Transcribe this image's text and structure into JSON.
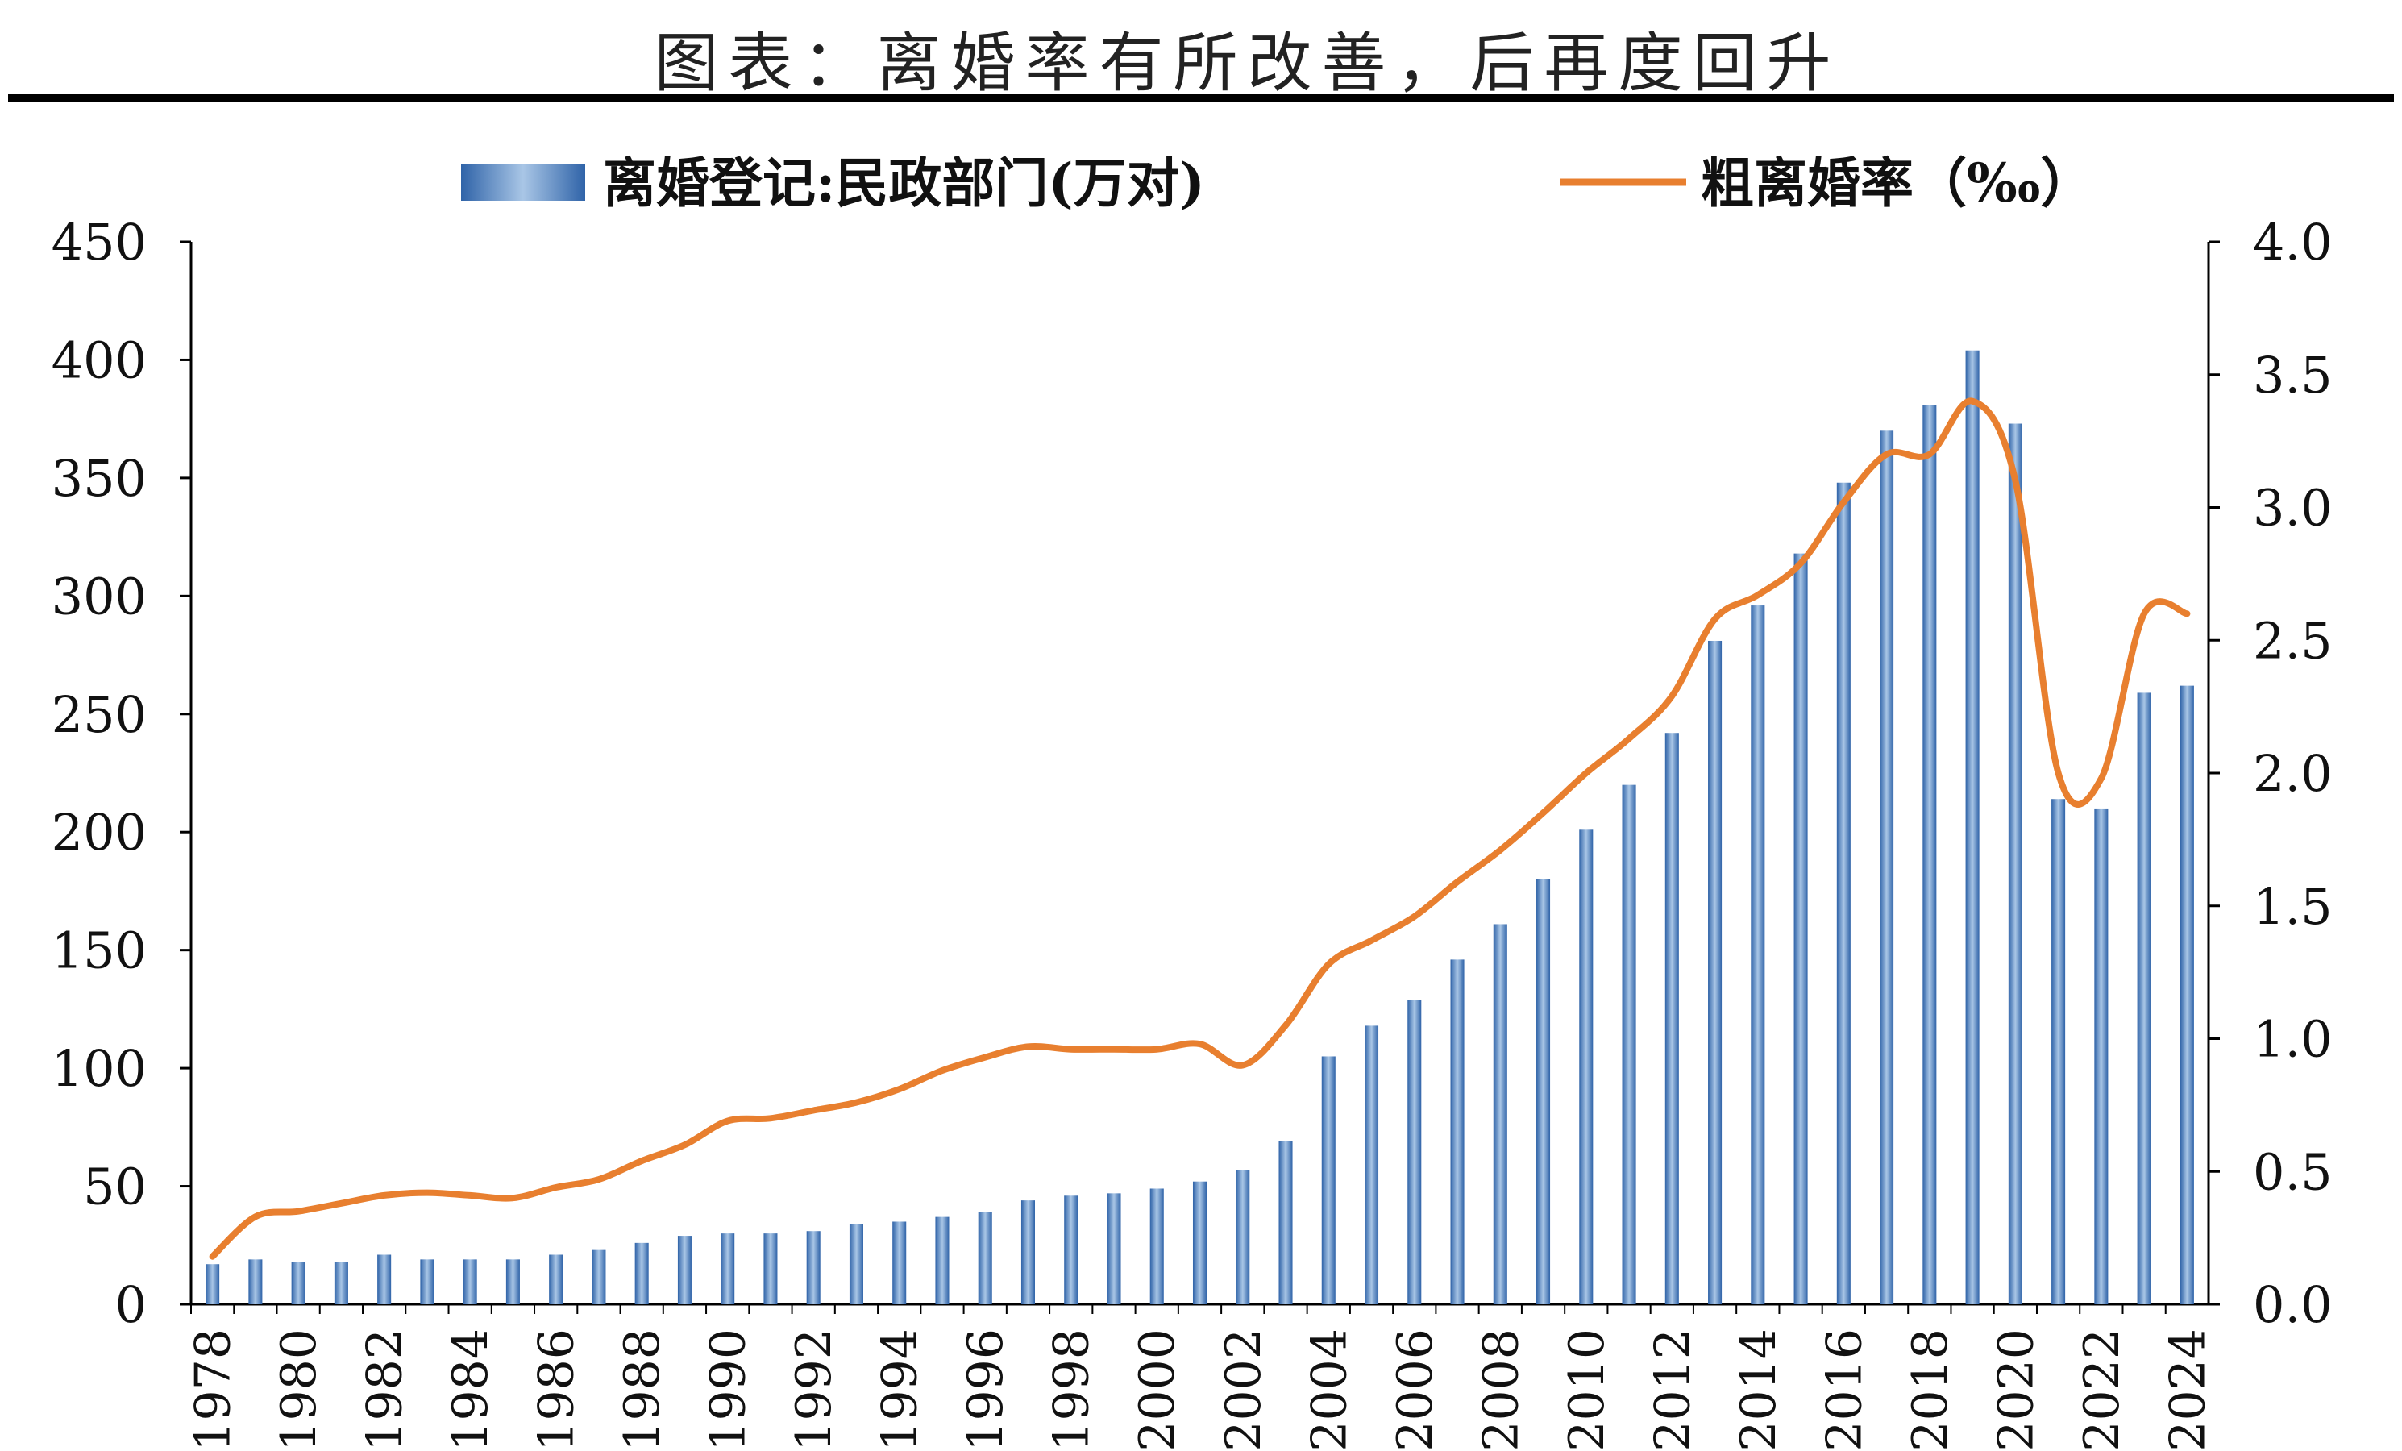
{
  "chart_data": {
    "type": "bar",
    "title": "图表：离婚率有所改善，后再度回升",
    "legend_position": "top",
    "grid": false,
    "categories": [
      "1978",
      "1979",
      "1980",
      "1981",
      "1982",
      "1983",
      "1984",
      "1985",
      "1986",
      "1987",
      "1988",
      "1989",
      "1990",
      "1991",
      "1992",
      "1993",
      "1994",
      "1995",
      "1996",
      "1997",
      "1998",
      "1999",
      "2000",
      "2001",
      "2002",
      "2003",
      "2004",
      "2005",
      "2006",
      "2007",
      "2008",
      "2009",
      "2010",
      "2011",
      "2012",
      "2013",
      "2014",
      "2015",
      "2016",
      "2017",
      "2018",
      "2019",
      "2020",
      "2021",
      "2022",
      "2023",
      "2024"
    ],
    "x_tick_labels": [
      "1978",
      "1980",
      "1982",
      "1984",
      "1986",
      "1988",
      "1990",
      "1992",
      "1994",
      "1996",
      "1998",
      "2000",
      "2002",
      "2004",
      "2006",
      "2008",
      "2010",
      "2012",
      "2014",
      "2016",
      "2018",
      "2020",
      "2022",
      "2024"
    ],
    "series": [
      {
        "name": "离婚登记:民政部门(万对)",
        "type": "bar",
        "axis": "left",
        "color": "#4f7fbf",
        "values": [
          17,
          19,
          18,
          18,
          21,
          19,
          19,
          19,
          21,
          23,
          26,
          29,
          30,
          30,
          31,
          34,
          35,
          37,
          39,
          44,
          46,
          47,
          49,
          52,
          57,
          69,
          105,
          118,
          129,
          146,
          161,
          180,
          201,
          220,
          242,
          281,
          296,
          318,
          348,
          370,
          381,
          404,
          373,
          214,
          210,
          259,
          262
        ]
      },
      {
        "name": "粗离婚率（‰）",
        "type": "line",
        "axis": "right",
        "color": "#e87f2f",
        "values": [
          0.18,
          0.33,
          0.35,
          0.38,
          0.41,
          0.42,
          0.41,
          0.4,
          0.44,
          0.47,
          0.54,
          0.6,
          0.69,
          0.7,
          0.73,
          0.76,
          0.81,
          0.88,
          0.93,
          0.97,
          0.96,
          0.96,
          0.96,
          0.98,
          0.9,
          1.05,
          1.28,
          1.37,
          1.46,
          1.59,
          1.71,
          1.85,
          2.0,
          2.13,
          2.29,
          2.58,
          2.67,
          2.79,
          3.02,
          3.2,
          3.2,
          3.4,
          3.1,
          2.0,
          1.98,
          2.6,
          2.6
        ]
      }
    ],
    "y_left": {
      "min": 0,
      "max": 450,
      "ticks": [
        "0",
        "50",
        "100",
        "150",
        "200",
        "250",
        "300",
        "350",
        "400",
        "450"
      ]
    },
    "y_right": {
      "min": 0,
      "max": 4,
      "ticks": [
        "0.0",
        "0.5",
        "1.0",
        "1.5",
        "2.0",
        "2.5",
        "3.0",
        "3.5",
        "4.0"
      ]
    }
  }
}
